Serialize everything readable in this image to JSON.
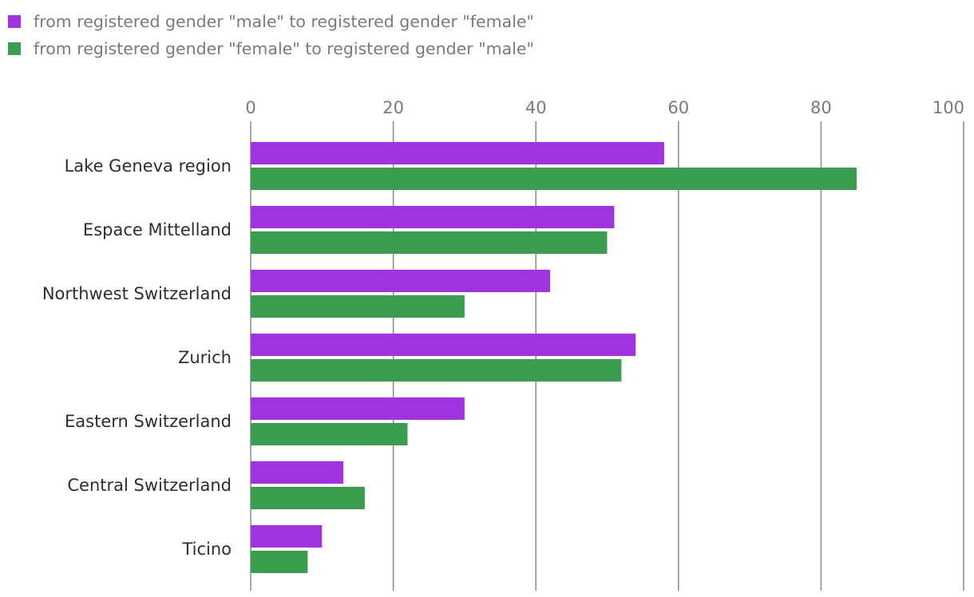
{
  "chart_data": {
    "type": "bar",
    "orientation": "horizontal",
    "title": "",
    "xlabel": "",
    "ylabel": "",
    "xlim": [
      0,
      100
    ],
    "ticks": [
      0,
      20,
      40,
      60,
      80,
      100
    ],
    "grid": true,
    "legend_position": "top-left",
    "categories": [
      "Lake Geneva region",
      "Espace Mittelland",
      "Northwest Switzerland",
      "Zurich",
      "Eastern Switzerland",
      "Central Switzerland",
      "Ticino"
    ],
    "series": [
      {
        "name": "from registered gender \"male\" to registered gender \"female\"",
        "color": "#a233e0",
        "values": [
          58,
          51,
          42,
          54,
          30,
          13,
          10
        ]
      },
      {
        "name": "from registered gender \"female\" to registered gender \"male\"",
        "color": "#3a9d50",
        "values": [
          85,
          50,
          30,
          52,
          22,
          16,
          8
        ]
      }
    ]
  }
}
